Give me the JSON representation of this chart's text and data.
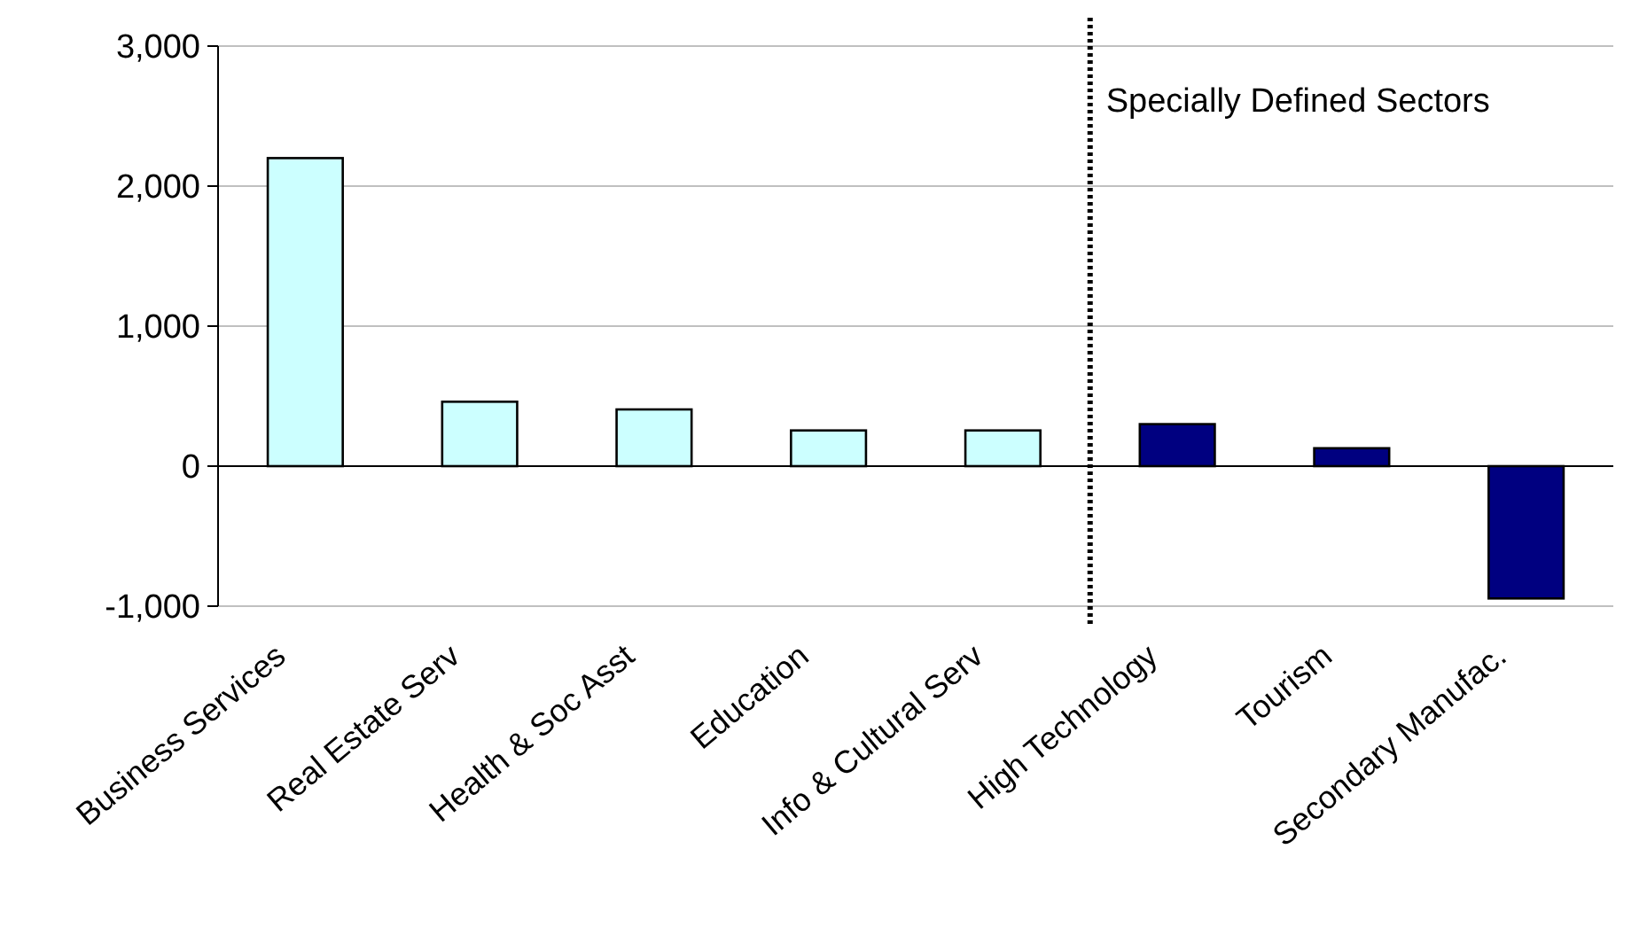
{
  "chart_data": {
    "type": "bar",
    "categories": [
      "Business Services",
      "Real Estate Serv",
      "Health & Soc Asst",
      "Education",
      "Info & Cultural Serv",
      "High Technology",
      "Tourism",
      "Secondary Manufac."
    ],
    "values": [
      2200,
      460,
      405,
      255,
      255,
      300,
      128,
      -945
    ],
    "colors": [
      "#ccffff",
      "#ccffff",
      "#ccffff",
      "#ccffff",
      "#ccffff",
      "#000080",
      "#000080",
      "#000080"
    ],
    "ylim": [
      -1000,
      3000
    ],
    "yticks": [
      {
        "value": -1000,
        "label": "-1,000"
      },
      0,
      {
        "value": 1000,
        "label": "1,000"
      },
      {
        "value": 2000,
        "label": "2,000"
      },
      {
        "value": 3000,
        "label": "3,000"
      }
    ],
    "grid": "y",
    "ref_lines": [
      {
        "axis": "x",
        "value": "High Technology",
        "label": "Specially Defined Sectors",
        "line_style": "dotted",
        "color": "#000000"
      }
    ]
  }
}
